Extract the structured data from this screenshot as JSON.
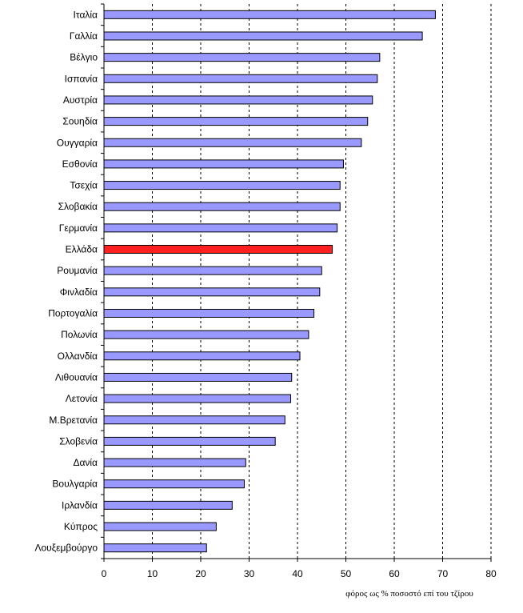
{
  "chart_data": {
    "type": "bar",
    "orientation": "horizontal",
    "categories": [
      "Ιταλία",
      "Γαλλία",
      "Βέλγιο",
      "Ισπανία",
      "Αυστρία",
      "Σουηδία",
      "Ουγγαρία",
      "Εσθονία",
      "Τσεχία",
      "Σλοβακία",
      "Γερμανία",
      "Ελλάδα",
      "Ρουμανία",
      "Φινλαδία",
      "Πορτογαλία",
      "Πολωνία",
      "Ολλανδία",
      "Λιθουανία",
      "Λετονία",
      "Μ.Βρετανία",
      "Σλοβενία",
      "Δανία",
      "Βουλγαρία",
      "Ιρλανδία",
      "Κύπρος",
      "Λουξεμβούργο"
    ],
    "values": [
      68.5,
      65.8,
      57.0,
      56.5,
      55.5,
      54.5,
      53.2,
      49.5,
      48.8,
      48.8,
      48.2,
      47.2,
      45.0,
      44.6,
      43.4,
      42.3,
      40.5,
      38.8,
      38.6,
      37.4,
      35.4,
      29.3,
      29.0,
      26.5,
      23.2,
      21.2
    ],
    "highlight_category": "Ελλάδα",
    "xlabel": "φόρος ως % ποσοστό επί του τζίρου",
    "xlim": [
      0,
      80
    ],
    "xticks": [
      0,
      10,
      20,
      30,
      40,
      50,
      60,
      70,
      80
    ],
    "grid": "vertical dashed",
    "colors": {
      "bar": "#9999ff",
      "highlight": "#ff2020",
      "edge": "#000000"
    }
  }
}
